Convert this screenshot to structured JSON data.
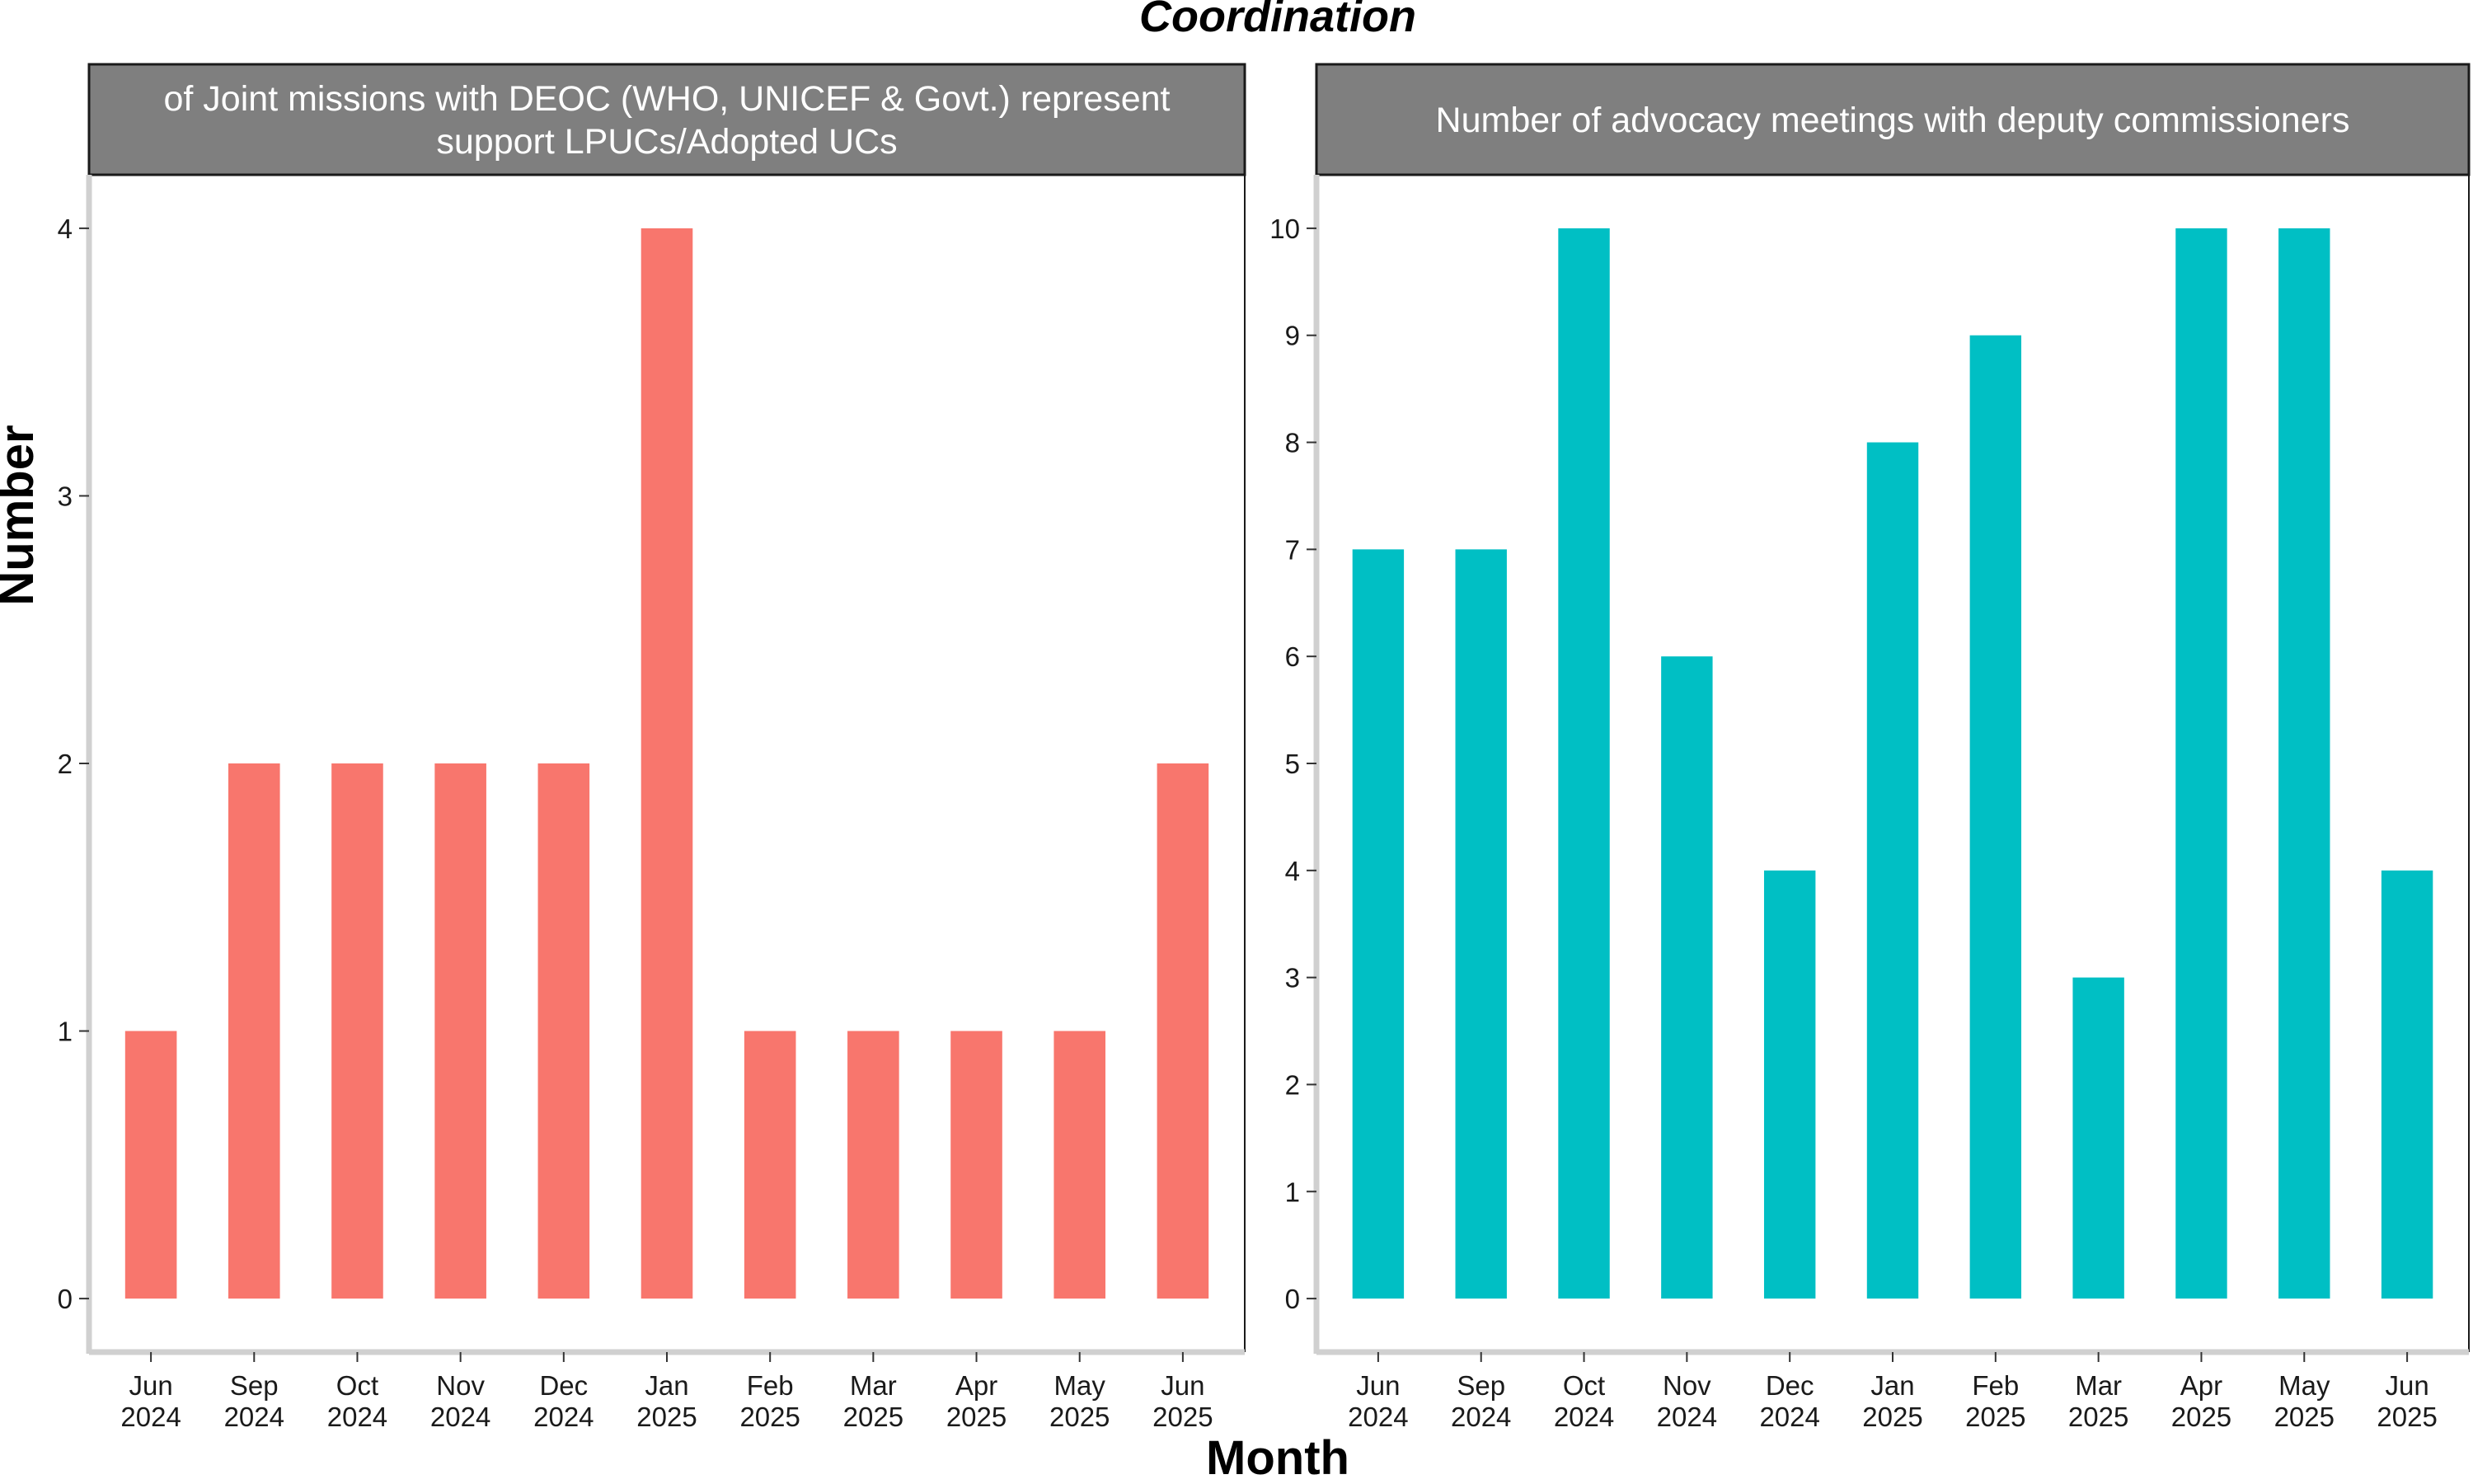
{
  "figure": {
    "title": "Coordination",
    "xlabel": "Month",
    "ylabel": "Number"
  },
  "chart_data": [
    {
      "type": "bar",
      "title": "Number of Joint missions with DEOC (WHO, UNICEF & Govt.) representatives to support LPUCs/Adopted UCs",
      "title_lines": [
        "of Joint missions with DEOC (WHO, UNICEF & Govt.) represent",
        "support LPUCs/Adopted UCs"
      ],
      "categories": [
        [
          "Jun",
          "2024"
        ],
        [
          "Sep",
          "2024"
        ],
        [
          "Oct",
          "2024"
        ],
        [
          "Nov",
          "2024"
        ],
        [
          "Dec",
          "2024"
        ],
        [
          "Jan",
          "2025"
        ],
        [
          "Feb",
          "2025"
        ],
        [
          "Mar",
          "2025"
        ],
        [
          "Apr",
          "2025"
        ],
        [
          "May",
          "2025"
        ],
        [
          "Jun",
          "2025"
        ]
      ],
      "values": [
        1,
        2,
        2,
        2,
        2,
        4,
        1,
        1,
        1,
        1,
        2
      ],
      "ylim": [
        -0.2,
        4.2
      ],
      "yticks": [
        "0",
        "1",
        "2",
        "3",
        "4"
      ],
      "color": "#F8766D",
      "xlabel": "Month",
      "ylabel": "Number"
    },
    {
      "type": "bar",
      "title": "Number of advocacy meetings with deputy commissioners",
      "title_lines": [
        "Number of advocacy meetings with deputy commissioners"
      ],
      "categories": [
        [
          "Jun",
          "2024"
        ],
        [
          "Sep",
          "2024"
        ],
        [
          "Oct",
          "2024"
        ],
        [
          "Nov",
          "2024"
        ],
        [
          "Dec",
          "2024"
        ],
        [
          "Jan",
          "2025"
        ],
        [
          "Feb",
          "2025"
        ],
        [
          "Mar",
          "2025"
        ],
        [
          "Apr",
          "2025"
        ],
        [
          "May",
          "2025"
        ],
        [
          "Jun",
          "2025"
        ]
      ],
      "values": [
        7,
        7,
        10,
        6,
        4,
        8,
        9,
        3,
        10,
        10,
        4
      ],
      "ylim": [
        -0.5,
        10.5
      ],
      "yticks": [
        "0",
        "1",
        "2",
        "3",
        "4",
        "5",
        "6",
        "7",
        "8",
        "9",
        "10"
      ],
      "color": "#00BFC4",
      "xlabel": "Month",
      "ylabel": "Number"
    }
  ]
}
